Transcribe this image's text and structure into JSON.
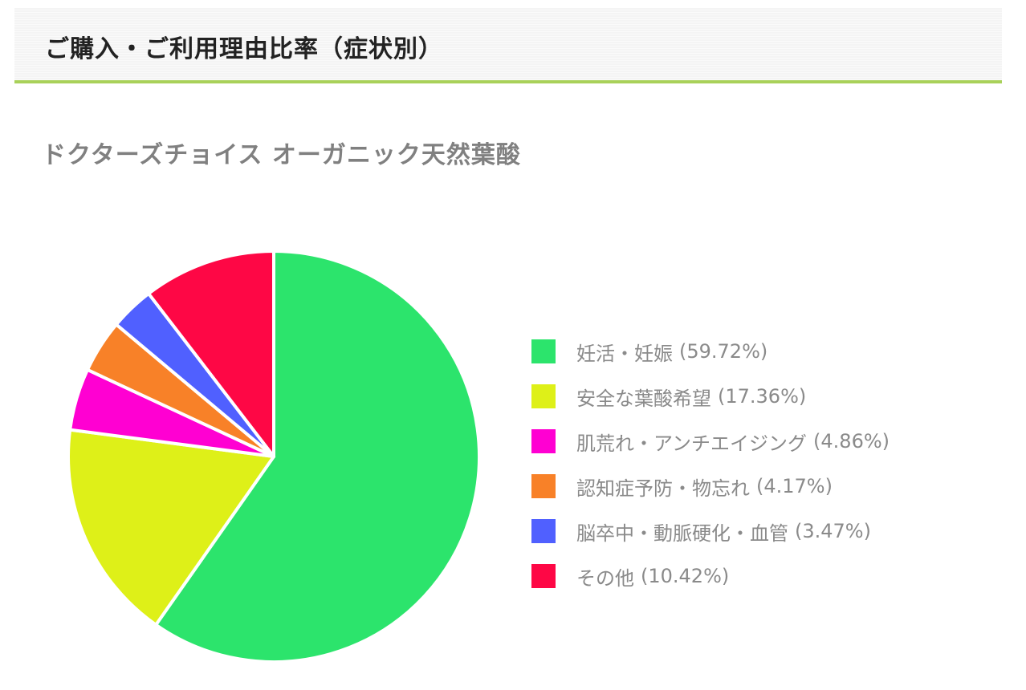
{
  "section": {
    "title": "ご購入・ご利用理由比率（症状別）"
  },
  "chart_data": {
    "type": "pie",
    "title": "ドクターズチョイス オーガニック天然葉酸",
    "legend_position": "right",
    "series": [
      {
        "name": "妊活・妊娠",
        "value": 59.72,
        "label": "(59.72%)",
        "color": "#2ce46c"
      },
      {
        "name": "安全な葉酸希望",
        "value": 17.36,
        "label": "(17.36%)",
        "color": "#def018"
      },
      {
        "name": "肌荒れ・アンチエイジング",
        "value": 4.86,
        "label": "(4.86%)",
        "color": "#ff00d2"
      },
      {
        "name": "認知症予防・物忘れ",
        "value": 4.17,
        "label": "(4.17%)",
        "color": "#f88128"
      },
      {
        "name": "脳卒中・動脈硬化・血管",
        "value": 3.47,
        "label": "(3.47%)",
        "color": "#5060ff"
      },
      {
        "name": "その他",
        "value": 10.42,
        "label": "(10.42%)",
        "color": "#fe0745"
      }
    ]
  }
}
